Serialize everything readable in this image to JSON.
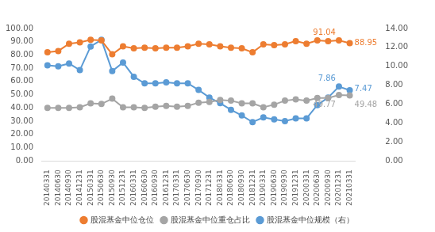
{
  "chart_data": {
    "type": "line",
    "categories": [
      "20140331",
      "20140630",
      "20140930",
      "20141231",
      "20150331",
      "20150630",
      "20150930",
      "20151231",
      "20160331",
      "20160630",
      "20160930",
      "20161231",
      "20170331",
      "20170630",
      "20170930",
      "20171231",
      "20180331",
      "20180630",
      "20180930",
      "20181231",
      "20190331",
      "20190630",
      "20190930",
      "20191231",
      "20200331",
      "20200630",
      "20200930",
      "20201231",
      "20210331"
    ],
    "series": [
      {
        "name": "股混基金中位仓位",
        "color": "#ED7D31",
        "marker": "circle",
        "line_style": "solid",
        "values": [
          82,
          83,
          88.5,
          89.5,
          91.5,
          91,
          80.5,
          86.5,
          85,
          85.5,
          85,
          85.5,
          85.5,
          86.5,
          88.5,
          88,
          86.5,
          85.5,
          85,
          82,
          88,
          87.5,
          88,
          90.5,
          88.5,
          91,
          90.5,
          91.04,
          88.95
        ],
        "value_labels": [
          null,
          null,
          null,
          null,
          null,
          null,
          null,
          null,
          null,
          null,
          null,
          null,
          null,
          null,
          null,
          null,
          null,
          null,
          null,
          null,
          null,
          null,
          null,
          null,
          null,
          null,
          null,
          "91.04",
          "88.95"
        ]
      },
      {
        "name": "股混基金中位重仓占比",
        "color": "#A5A5A5",
        "marker": "circle",
        "line_style": "solid",
        "values": [
          40,
          40,
          40,
          40.5,
          43.5,
          43,
          47,
          40.5,
          40.5,
          40,
          41,
          41.5,
          41,
          41.5,
          44,
          44.5,
          46,
          45.5,
          43.5,
          43.5,
          40.5,
          42.5,
          45.5,
          46.5,
          45.5,
          47.5,
          47.5,
          49.77,
          49.48
        ],
        "value_labels": [
          null,
          null,
          null,
          null,
          null,
          null,
          null,
          null,
          null,
          null,
          null,
          null,
          null,
          null,
          null,
          null,
          null,
          null,
          null,
          null,
          null,
          null,
          null,
          null,
          null,
          null,
          null,
          "49.77",
          "49.48"
        ]
      },
      {
        "name": "股混基金中位规模（右）",
        "color": "#5B9BD5",
        "marker": "circle",
        "line_style": "solid",
        "axis": "y2",
        "values": [
          10.1,
          10.0,
          10.3,
          9.6,
          12.1,
          12.8,
          9.5,
          10.4,
          8.9,
          8.2,
          8.2,
          8.3,
          8.2,
          8.2,
          7.5,
          6.7,
          6.1,
          5.4,
          4.8,
          4.1,
          4.6,
          4.4,
          4.2,
          4.5,
          4.5,
          5.9,
          6.7,
          7.86,
          7.47
        ],
        "value_labels": [
          null,
          null,
          null,
          null,
          null,
          null,
          null,
          null,
          null,
          null,
          null,
          null,
          null,
          null,
          null,
          null,
          null,
          null,
          null,
          null,
          null,
          null,
          null,
          null,
          null,
          null,
          null,
          "7.86",
          "7.47"
        ]
      }
    ],
    "ylim": [
      0,
      100
    ],
    "yticks": [
      {
        "value": 0,
        "label": "0.00"
      },
      {
        "value": 10,
        "label": "10.00"
      },
      {
        "value": 20,
        "label": "20.00"
      },
      {
        "value": 30,
        "label": "30.00"
      },
      {
        "value": 40,
        "label": "40.00"
      },
      {
        "value": 50,
        "label": "50.00"
      },
      {
        "value": 60,
        "label": "60.00"
      },
      {
        "value": 70,
        "label": "70.00"
      },
      {
        "value": 80,
        "label": "80.00"
      },
      {
        "value": 90,
        "label": "90.00"
      },
      {
        "value": 100,
        "label": "100.00"
      }
    ],
    "y2lim": [
      0,
      14
    ],
    "y2ticks": [
      {
        "value": 0,
        "label": "0.00"
      },
      {
        "value": 2,
        "label": "2.00"
      },
      {
        "value": 4,
        "label": "4.00"
      },
      {
        "value": 6,
        "label": "6.00"
      },
      {
        "value": 8,
        "label": "8.00"
      },
      {
        "value": 10,
        "label": "10.00"
      },
      {
        "value": 12,
        "label": "12.00"
      },
      {
        "value": 14,
        "label": "14.00"
      }
    ],
    "grid": false,
    "legend": "bottom",
    "data_labels": true
  }
}
